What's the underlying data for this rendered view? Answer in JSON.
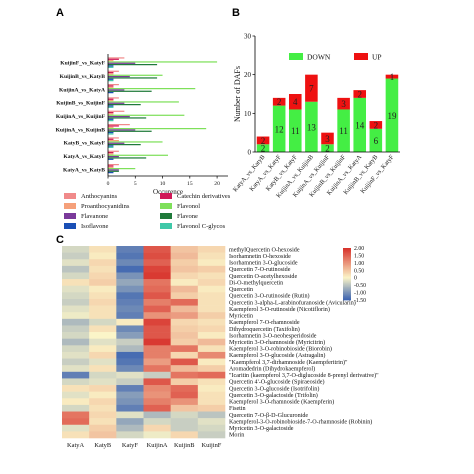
{
  "panel_labels": {
    "a": "A",
    "b": "B",
    "c": "C"
  },
  "chart_data": [
    {
      "type": "bar",
      "orientation": "horizontal",
      "panel": "A",
      "categories": [
        "KuijinF_vs_KatyF",
        "KuijinB_vs_KatyB",
        "KuijinA_vs_KatyA",
        "KuijinB_vs_KuijinF",
        "KuijinA_vs_KuijinF",
        "KuijinA_vs_KuijinB",
        "KatyB_vs_KatyF",
        "KatyA_vs_KatyF",
        "KatyA_vs_KatyB"
      ],
      "series": [
        {
          "name": "Anthocyanins",
          "color": "#f08a8a",
          "values": [
            3,
            2,
            2,
            2,
            3,
            4,
            2,
            2,
            2
          ]
        },
        {
          "name": "Catechin derivatives",
          "color": "#d01858",
          "values": [
            2,
            1,
            1,
            1,
            1,
            2,
            1,
            1,
            1
          ]
        },
        {
          "name": "Proanthocyanidins",
          "color": "#f5a07a",
          "values": [
            1,
            1,
            1,
            1,
            1,
            1,
            2,
            1,
            1
          ]
        },
        {
          "name": "Flavonol",
          "color": "#7ee05a",
          "values": [
            20,
            10,
            16,
            13,
            14,
            18,
            10,
            11,
            5
          ]
        },
        {
          "name": "Flavanone",
          "color": "#7a3a9a",
          "values": [
            5,
            4,
            3,
            3,
            4,
            5,
            3,
            2,
            2
          ]
        },
        {
          "name": "Flavone",
          "color": "#1f7a3a",
          "values": [
            9,
            9,
            8,
            6,
            7,
            8,
            6,
            7,
            2
          ]
        },
        {
          "name": "Isoflavone",
          "color": "#1a4fb5",
          "values": [
            1,
            1,
            1,
            1,
            1,
            1,
            1,
            1,
            1
          ]
        },
        {
          "name": "Flavonol C-glycos",
          "color": "#3fc8a8",
          "values": [
            1,
            1,
            0,
            1,
            1,
            1,
            1,
            0,
            0
          ]
        }
      ],
      "xlabel": "Occurence",
      "xticks": [
        "0",
        "5",
        "10",
        "15",
        "20"
      ],
      "xlim": [
        0,
        22
      ]
    },
    {
      "type": "bar",
      "stacked": true,
      "panel": "B",
      "categories": [
        "KatyA_vs_KatyB",
        "KatyA_vs_KatyF",
        "KatyB_vs_KatyF",
        "KuijinA_vs_KuijinB",
        "KuijinA_vs_KuijinF",
        "KuijinB_vs_KuijinF",
        "KuijinA_vs_KatyA",
        "KuijinB_vs_KatyB",
        "KuijinF_vs_KatyF"
      ],
      "series": [
        {
          "name": "DOWN",
          "color": "#44ee44",
          "values": [
            2,
            12,
            11,
            13,
            2,
            11,
            14,
            6,
            19
          ],
          "labels": [
            "2",
            "12",
            "11",
            "13",
            "2",
            "11",
            "14",
            "6",
            "19"
          ]
        },
        {
          "name": "UP",
          "color": "#ee1111",
          "values": [
            2,
            2,
            4,
            7,
            3,
            3,
            2,
            2,
            1
          ],
          "labels": [
            "2",
            "2",
            "4",
            "7",
            "3",
            "3",
            "2",
            "2",
            "1"
          ]
        }
      ],
      "ylabel": "Number of DAFs",
      "yticks": [
        "0",
        "10",
        "20",
        "30"
      ],
      "ylim": [
        0,
        30
      ],
      "legend": "top"
    },
    {
      "type": "heatmap",
      "panel": "C",
      "columns": [
        "KatyA",
        "KatyB",
        "KatyF",
        "KuijinA",
        "KuijinB",
        "KuijinF"
      ],
      "rows": [
        "methylQuercetin O-hexoside",
        "Isorhamnetin O-hexoside",
        "Isorhamnetin 3-O-glucoside",
        "Quercetin 7-O-rutinoside",
        "Quercetin O-acetylhexoside",
        "Di-O-methylquercetin",
        "Quercetin",
        "Quercetin 3-O-rutinoside (Rutin)",
        "Quercetin 3-alpha-L-arabinofuranoside (Avicularin)",
        "Kaempferol 3-O-rutinoside (Nicotiflorin)",
        "Myricetin",
        "Kaempferol 7-O-rhamnoside",
        "Dihydroquercetin (Taxifolin)",
        "Isorhamnetin 3-O-neohesperidoside",
        "Myricetin 3-O-rhamnoside (Myricitrin)",
        "Kaempferol 3-O-robinobioside (Biorobin)",
        "Kaempferol 3-O-glucoside (Astragalin)",
        "\"Kaempferol 3,7-dirhamnoside (Kaempferitrin)\"",
        "Aromadedrin (Dihydrokaempferol)",
        "\"Icaritin (kaempferol 3,7-O-diglucoside 8-prenyl derivative)\"",
        "Quercetin 4'-O-glucoside (Spiraeoside)",
        "Quercetin 3-O-glucoside (Isotrifolin)",
        "Quercetin 3-O-galactoside (Trifolin)",
        "Kaempferol 3-O-rhamnoside (Kaempferin)",
        "Fisetin",
        "Quercetin 7-O-β-D-Glucuronide",
        "Kaempferol-3-O-robinobioside-7-O-rhamnoside (Robinin)",
        "Myricetin 3-O-galactoside",
        "Morin"
      ],
      "values": [
        [
          -0.3,
          0.2,
          -1.2,
          1.6,
          0.5,
          0.3
        ],
        [
          -0.4,
          0.1,
          -1.3,
          1.7,
          0.6,
          0.2
        ],
        [
          -0.2,
          0.3,
          -1.1,
          1.5,
          0.4,
          0.1
        ],
        [
          -0.5,
          0.2,
          -1.4,
          1.8,
          0.5,
          0.4
        ],
        [
          -0.3,
          0.3,
          -1.0,
          1.9,
          0.3,
          0.2
        ],
        [
          0.2,
          0.4,
          -0.8,
          1.3,
          0.1,
          0.3
        ],
        [
          -0.2,
          0.1,
          -1.0,
          1.4,
          0.6,
          0.1
        ],
        [
          -0.3,
          0.2,
          -1.3,
          1.6,
          0.4,
          0.2
        ],
        [
          -0.4,
          0.3,
          -1.2,
          1.2,
          1.4,
          0.2
        ],
        [
          -0.2,
          0.2,
          -1.1,
          1.5,
          0.6,
          0.2
        ],
        [
          -0.1,
          0.2,
          -1.2,
          1.0,
          0.9,
          0.4
        ],
        [
          -0.6,
          -0.3,
          0.1,
          1.8,
          0.3,
          0.2
        ],
        [
          -0.4,
          0.2,
          -1.1,
          1.6,
          0.4,
          0.3
        ],
        [
          -0.3,
          0.0,
          -0.9,
          1.6,
          0.5,
          0.1
        ],
        [
          -0.6,
          -0.2,
          -0.4,
          1.9,
          0.4,
          0.6
        ],
        [
          -0.3,
          0.1,
          -0.6,
          1.2,
          1.3,
          0.2
        ],
        [
          -0.2,
          0.3,
          -1.4,
          1.2,
          0.3,
          1.1
        ],
        [
          -0.4,
          -0.2,
          -1.3,
          0.9,
          1.6,
          0.1
        ],
        [
          -0.2,
          0.2,
          -1.1,
          1.3,
          0.6,
          0.4
        ],
        [
          -1.2,
          -0.3,
          -0.2,
          -0.4,
          1.3,
          1.4
        ],
        [
          -0.3,
          -0.2,
          -0.4,
          1.6,
          0.4,
          0.2
        ],
        [
          0.2,
          0.3,
          -1.2,
          1.1,
          1.4,
          0.1
        ],
        [
          -0.2,
          0.1,
          -0.9,
          1.0,
          1.5,
          0.2
        ],
        [
          0.1,
          0.3,
          -1.0,
          1.2,
          1.0,
          0.2
        ],
        [
          -0.3,
          0.2,
          -1.2,
          1.5,
          0.5,
          0.4
        ],
        [
          1.3,
          0.3,
          -0.2,
          -0.6,
          -0.3,
          -0.5
        ],
        [
          1.4,
          0.2,
          -0.8,
          -0.3,
          -0.4,
          -0.2
        ],
        [
          -0.2,
          0.4,
          -0.6,
          0.3,
          -0.4,
          -0.3
        ],
        [
          0.2,
          0.5,
          -0.3,
          -0.1,
          0.3,
          -0.4
        ]
      ],
      "color_scale": {
        "min": -1.5,
        "max": 2.0,
        "low": "#3a62b0",
        "mid": "#fbf5c8",
        "high": "#d7302a",
        "ticks": [
          "2.00",
          "1.50",
          "1.00",
          "0.50",
          "0",
          "-0.50",
          "-1.00",
          "-1.50"
        ]
      }
    }
  ]
}
